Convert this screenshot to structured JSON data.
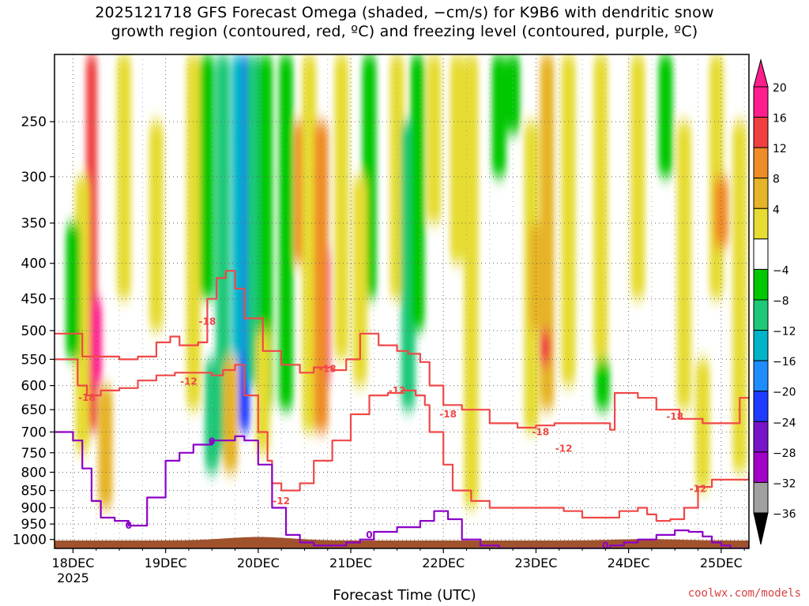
{
  "title_line1": "2025121718 GFS Forecast Omega (shaded, −cm/s) for K9B6 with dendritic snow",
  "title_line2": "growth region (contoured, red, ºC) and freezing level (contoured, purple, ºC)",
  "xlabel": "Forecast Time (UTC)",
  "credit": "coolwx.com/models",
  "chart_data": {
    "type": "heatmap",
    "title": "2025121718 GFS Forecast Omega (shaded, −cm/s) for K9B6 with dendritic snow growth region (contoured, red, ºC) and freezing level (contoured, purple, ºC)",
    "xlabel": "Forecast Time (UTC)",
    "ylabel": "",
    "y_axis": {
      "scale": "pressure-log",
      "range": [
        1030,
        200
      ],
      "ticks": [
        250,
        300,
        350,
        400,
        450,
        500,
        550,
        600,
        650,
        700,
        750,
        800,
        850,
        900,
        950,
        1000
      ]
    },
    "x_axis": {
      "range_days": [
        -0.2,
        7.3
      ],
      "ticks": [
        {
          "day": 0,
          "label": "18DEC",
          "sublabel": "2025"
        },
        {
          "day": 1,
          "label": "19DEC",
          "sublabel": ""
        },
        {
          "day": 2,
          "label": "20DEC",
          "sublabel": ""
        },
        {
          "day": 3,
          "label": "21DEC",
          "sublabel": ""
        },
        {
          "day": 4,
          "label": "22DEC",
          "sublabel": ""
        },
        {
          "day": 5,
          "label": "23DEC",
          "sublabel": ""
        },
        {
          "day": 6,
          "label": "24DEC",
          "sublabel": ""
        },
        {
          "day": 7,
          "label": "25DEC",
          "sublabel": ""
        }
      ]
    },
    "grid": true,
    "colorbar": {
      "labels": [
        "20",
        "16",
        "12",
        "8",
        "4",
        "−4",
        "−8",
        "−12",
        "−16",
        "−20",
        "−24",
        "−28",
        "−32",
        "−36"
      ],
      "bins": [
        {
          "lo": 20,
          "hi": 24,
          "color": "#ff1e8c"
        },
        {
          "lo": 16,
          "hi": 20,
          "color": "#f04040"
        },
        {
          "lo": 12,
          "hi": 16,
          "color": "#f08c28"
        },
        {
          "lo": 8,
          "hi": 12,
          "color": "#e6b428"
        },
        {
          "lo": 4,
          "hi": 8,
          "color": "#e6dc32"
        },
        {
          "lo": -4,
          "hi": 4,
          "color": "#ffffff"
        },
        {
          "lo": -8,
          "hi": -4,
          "color": "#00c800"
        },
        {
          "lo": -12,
          "hi": -8,
          "color": "#1ec878"
        },
        {
          "lo": -16,
          "hi": -12,
          "color": "#00b4c8"
        },
        {
          "lo": -20,
          "hi": -16,
          "color": "#1e8cff"
        },
        {
          "lo": -24,
          "hi": -20,
          "color": "#1e3cff"
        },
        {
          "lo": -28,
          "hi": -24,
          "color": "#7814c8"
        },
        {
          "lo": -32,
          "hi": -28,
          "color": "#a000c8"
        },
        {
          "lo": -36,
          "hi": -32,
          "color": "#a0a0a0"
        }
      ],
      "top_arrow_color": "#ff1e8c",
      "bottom_arrow_color": "#000000"
    },
    "omega_features": [
      {
        "day": 0.2,
        "pmin": 200,
        "pmax": 700,
        "value": 18
      },
      {
        "day": 0.25,
        "pmin": 450,
        "pmax": 600,
        "value": 22
      },
      {
        "day": 0.1,
        "pmin": 300,
        "pmax": 750,
        "value": 6
      },
      {
        "day": 0.35,
        "pmin": 600,
        "pmax": 900,
        "value": 10
      },
      {
        "day": 0.55,
        "pmin": 200,
        "pmax": 450,
        "value": 6
      },
      {
        "day": 0.0,
        "pmin": 350,
        "pmax": 550,
        "value": -6
      },
      {
        "day": 0.9,
        "pmin": 250,
        "pmax": 500,
        "value": 5
      },
      {
        "day": 1.3,
        "pmin": 200,
        "pmax": 650,
        "value": 5
      },
      {
        "day": 1.45,
        "pmin": 200,
        "pmax": 450,
        "value": -6
      },
      {
        "day": 1.5,
        "pmin": 550,
        "pmax": 800,
        "value": -10
      },
      {
        "day": 1.62,
        "pmin": 200,
        "pmax": 750,
        "value": -9
      },
      {
        "day": 1.7,
        "pmin": 550,
        "pmax": 800,
        "value": 8
      },
      {
        "day": 1.85,
        "pmin": 200,
        "pmax": 700,
        "value": -22
      },
      {
        "day": 1.78,
        "pmin": 200,
        "pmax": 550,
        "value": -16
      },
      {
        "day": 1.95,
        "pmin": 200,
        "pmax": 600,
        "value": -12
      },
      {
        "day": 2.08,
        "pmin": 200,
        "pmax": 650,
        "value": -8
      },
      {
        "day": 2.05,
        "pmin": 500,
        "pmax": 750,
        "value": 6
      },
      {
        "day": 2.3,
        "pmin": 200,
        "pmax": 650,
        "value": -6
      },
      {
        "day": 2.45,
        "pmin": 250,
        "pmax": 400,
        "value": 14
      },
      {
        "day": 2.55,
        "pmin": 200,
        "pmax": 700,
        "value": 6
      },
      {
        "day": 2.72,
        "pmin": 380,
        "pmax": 600,
        "value": 22
      },
      {
        "day": 2.68,
        "pmin": 250,
        "pmax": 700,
        "value": 12
      },
      {
        "day": 2.9,
        "pmin": 200,
        "pmax": 550,
        "value": 5
      },
      {
        "day": 3.2,
        "pmin": 200,
        "pmax": 450,
        "value": -6
      },
      {
        "day": 3.1,
        "pmin": 300,
        "pmax": 600,
        "value": 5
      },
      {
        "day": 3.5,
        "pmin": 200,
        "pmax": 450,
        "value": 5
      },
      {
        "day": 3.62,
        "pmin": 250,
        "pmax": 650,
        "value": -10
      },
      {
        "day": 3.72,
        "pmin": 200,
        "pmax": 500,
        "value": -6
      },
      {
        "day": 3.9,
        "pmin": 200,
        "pmax": 350,
        "value": 5
      },
      {
        "day": 4.15,
        "pmin": 200,
        "pmax": 400,
        "value": 5
      },
      {
        "day": 4.3,
        "pmin": 200,
        "pmax": 900,
        "value": 5
      },
      {
        "day": 4.6,
        "pmin": 200,
        "pmax": 300,
        "value": -7
      },
      {
        "day": 4.75,
        "pmin": 200,
        "pmax": 260,
        "value": -6
      },
      {
        "day": 4.95,
        "pmin": 250,
        "pmax": 700,
        "value": 5
      },
      {
        "day": 5.0,
        "pmin": 350,
        "pmax": 500,
        "value": 10
      },
      {
        "day": 5.12,
        "pmin": 200,
        "pmax": 650,
        "value": 10
      },
      {
        "day": 5.1,
        "pmin": 500,
        "pmax": 560,
        "value": 18
      },
      {
        "day": 5.35,
        "pmin": 200,
        "pmax": 600,
        "value": 6
      },
      {
        "day": 5.7,
        "pmin": 200,
        "pmax": 550,
        "value": 5
      },
      {
        "day": 5.72,
        "pmin": 550,
        "pmax": 650,
        "value": -6
      },
      {
        "day": 6.1,
        "pmin": 200,
        "pmax": 450,
        "value": 5
      },
      {
        "day": 6.4,
        "pmin": 200,
        "pmax": 300,
        "value": -6
      },
      {
        "day": 6.6,
        "pmin": 250,
        "pmax": 650,
        "value": 5
      },
      {
        "day": 6.8,
        "pmin": 550,
        "pmax": 850,
        "value": 5
      },
      {
        "day": 6.95,
        "pmin": 200,
        "pmax": 450,
        "value": 6
      },
      {
        "day": 7.0,
        "pmin": 300,
        "pmax": 380,
        "value": 12
      },
      {
        "day": 7.2,
        "pmin": 250,
        "pmax": 800,
        "value": 6
      }
    ],
    "contours": [
      {
        "label": "-18",
        "color": "#f04848",
        "group": "dgz",
        "x": [
          -0.2,
          0.1,
          0.3,
          0.5,
          0.7,
          0.9,
          1.05,
          1.15,
          1.35,
          1.45,
          1.55,
          1.65,
          1.75,
          1.85,
          2.05,
          2.25,
          2.45,
          2.6,
          2.8,
          2.95,
          3.1,
          3.3,
          3.5,
          3.62,
          3.75,
          3.85,
          4.0,
          4.2,
          4.5,
          4.8,
          5.0,
          5.2,
          5.4,
          5.6,
          5.8,
          5.85,
          6.1,
          6.3,
          6.55,
          6.8,
          7.0,
          7.2,
          7.3
        ],
        "p": [
          505,
          545,
          545,
          550,
          545,
          520,
          510,
          525,
          520,
          450,
          420,
          410,
          435,
          480,
          535,
          560,
          575,
          565,
          570,
          550,
          505,
          525,
          535,
          540,
          555,
          600,
          640,
          650,
          680,
          690,
          685,
          680,
          680,
          680,
          695,
          615,
          625,
          650,
          670,
          680,
          680,
          625,
          625
        ]
      },
      {
        "label": "-12",
        "color": "#f04848",
        "group": "dgz",
        "x": [
          -0.2,
          0.05,
          0.15,
          0.3,
          0.5,
          0.7,
          0.9,
          1.1,
          1.3,
          1.5,
          1.62,
          1.75,
          1.85,
          2.0,
          2.1,
          2.15,
          2.25,
          2.45,
          2.6,
          2.8,
          3.0,
          3.2,
          3.4,
          3.55,
          3.7,
          3.8,
          3.85,
          4.0,
          4.1,
          4.3,
          4.5,
          4.8,
          5.0,
          5.3,
          5.5,
          5.7,
          5.9,
          6.1,
          6.2,
          6.3,
          6.45,
          6.6,
          6.75,
          6.9,
          7.05,
          7.2,
          7.3
        ],
        "p": [
          550,
          600,
          620,
          610,
          605,
          590,
          580,
          575,
          575,
          580,
          570,
          560,
          620,
          700,
          770,
          830,
          850,
          830,
          770,
          720,
          660,
          620,
          615,
          610,
          620,
          640,
          700,
          780,
          850,
          880,
          900,
          900,
          900,
          910,
          930,
          930,
          910,
          900,
          920,
          940,
          935,
          900,
          840,
          820,
          820,
          820,
          800
        ]
      },
      {
        "label": "0",
        "color": "#8c00c8",
        "group": "freezing",
        "x": [
          -0.2,
          0.0,
          0.1,
          0.2,
          0.3,
          0.45,
          0.6,
          0.8,
          1.0,
          1.15,
          1.3,
          1.5,
          1.75,
          1.85,
          2.0,
          2.15,
          2.3,
          2.45,
          2.6,
          2.8,
          2.95,
          3.1,
          3.25,
          3.5,
          3.75,
          3.9,
          4.05,
          4.2,
          4.4,
          4.6,
          4.8,
          5.0,
          5.2,
          5.4,
          5.6,
          5.8,
          5.95,
          6.1,
          6.3,
          6.5,
          6.65,
          6.8,
          6.9,
          7.0,
          7.1,
          7.3
        ],
        "p": [
          700,
          720,
          790,
          880,
          930,
          940,
          955,
          870,
          770,
          750,
          730,
          720,
          710,
          720,
          780,
          900,
          985,
          1010,
          1020,
          1020,
          1010,
          1000,
          975,
          960,
          940,
          910,
          935,
          1000,
          1020,
          1030,
          1030,
          1030,
          1030,
          1030,
          1030,
          1020,
          1010,
          1000,
          985,
          970,
          975,
          990,
          1010,
          1020,
          1030,
          1030
        ]
      }
    ],
    "contour_labels": [
      {
        "text": "-18",
        "day": 1.45,
        "p": 485,
        "color": "#f04848"
      },
      {
        "text": "-12",
        "day": 1.25,
        "p": 592,
        "color": "#f04848"
      },
      {
        "text": "-18",
        "day": 0.15,
        "p": 625,
        "color": "#f04848"
      },
      {
        "text": "-18",
        "day": 2.75,
        "p": 568,
        "color": "#f04848"
      },
      {
        "text": "-12",
        "day": 3.5,
        "p": 610,
        "color": "#f04848"
      },
      {
        "text": "-18",
        "day": 4.05,
        "p": 660,
        "color": "#f04848"
      },
      {
        "text": "-18",
        "day": 5.05,
        "p": 700,
        "color": "#f04848"
      },
      {
        "text": "-12",
        "day": 5.3,
        "p": 740,
        "color": "#f04848"
      },
      {
        "text": "-18",
        "day": 6.5,
        "p": 665,
        "color": "#f04848"
      },
      {
        "text": "-12",
        "day": 6.75,
        "p": 845,
        "color": "#f04848"
      },
      {
        "text": "-12",
        "day": 2.25,
        "p": 880,
        "color": "#f04848"
      },
      {
        "text": "0",
        "day": 1.5,
        "p": 722,
        "color": "#8c00c8"
      },
      {
        "text": "0",
        "day": 0.6,
        "p": 955,
        "color": "#8c00c8"
      },
      {
        "text": "0",
        "day": 3.2,
        "p": 985,
        "color": "#8c00c8"
      },
      {
        "text": "0",
        "day": 5.75,
        "p": 1020,
        "color": "#8c00c8"
      }
    ],
    "terrain_color": "#a0522d"
  }
}
